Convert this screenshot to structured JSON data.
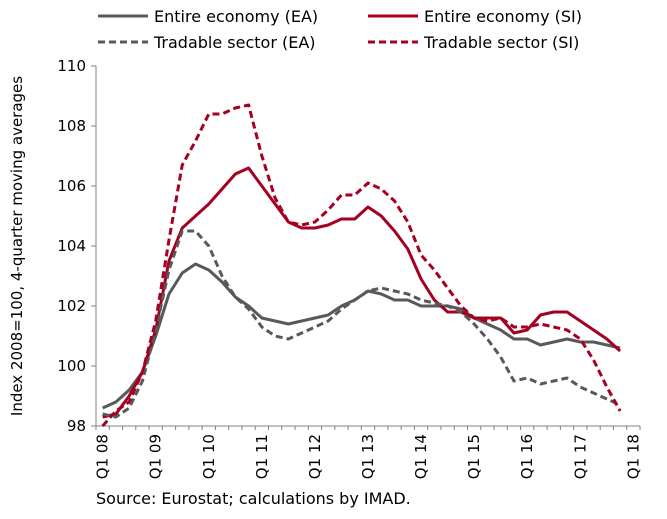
{
  "chart_data": {
    "type": "line",
    "title": "",
    "xlabel": "",
    "ylabel": "Index 2008=100, 4-quarter moving averages",
    "ylim": [
      98,
      110
    ],
    "yticks": [
      98,
      100,
      102,
      104,
      106,
      108,
      110
    ],
    "grid": false,
    "legend_position": "top",
    "x_tick_labels": [
      "Q1 08",
      "Q1 09",
      "Q1 10",
      "Q1 11",
      "Q1 12",
      "Q1 13",
      "Q1 14",
      "Q1 15",
      "Q1 16",
      "Q1 17",
      "Q1 18"
    ],
    "x": [
      "Q1 08",
      "Q2 08",
      "Q3 08",
      "Q4 08",
      "Q1 09",
      "Q2 09",
      "Q3 09",
      "Q4 09",
      "Q1 10",
      "Q2 10",
      "Q3 10",
      "Q4 10",
      "Q1 11",
      "Q2 11",
      "Q3 11",
      "Q4 11",
      "Q1 12",
      "Q2 12",
      "Q3 12",
      "Q4 12",
      "Q1 13",
      "Q2 13",
      "Q3 13",
      "Q4 13",
      "Q1 14",
      "Q2 14",
      "Q3 14",
      "Q4 14",
      "Q1 15",
      "Q2 15",
      "Q3 15",
      "Q4 15",
      "Q1 16",
      "Q2 16",
      "Q3 16",
      "Q4 16",
      "Q1 17",
      "Q2 17",
      "Q3 17",
      "Q4 17"
    ],
    "series": [
      {
        "name": "Entire economy (EA)",
        "color": "#595959",
        "dash": false,
        "values": [
          98.6,
          98.8,
          99.2,
          99.8,
          101.0,
          102.4,
          103.1,
          103.4,
          103.2,
          102.8,
          102.3,
          102.0,
          101.6,
          101.5,
          101.4,
          101.5,
          101.6,
          101.7,
          102.0,
          102.2,
          102.5,
          102.4,
          102.2,
          102.2,
          102.0,
          102.0,
          102.0,
          101.9,
          101.6,
          101.4,
          101.2,
          100.9,
          100.9,
          100.7,
          100.8,
          100.9,
          100.8,
          100.8,
          100.7,
          100.6
        ]
      },
      {
        "name": "Entire economy (SI)",
        "color": "#a50021",
        "dash": false,
        "values": [
          98.3,
          98.4,
          99.0,
          99.8,
          101.2,
          103.5,
          104.6,
          105.0,
          105.4,
          105.9,
          106.4,
          106.6,
          106.0,
          105.4,
          104.8,
          104.6,
          104.6,
          104.7,
          104.9,
          104.9,
          105.3,
          105.0,
          104.5,
          103.9,
          102.9,
          102.2,
          101.8,
          101.8,
          101.6,
          101.6,
          101.6,
          101.1,
          101.2,
          101.7,
          101.8,
          101.8,
          101.5,
          101.2,
          100.9,
          100.5
        ]
      },
      {
        "name": "Tradable sector (EA)",
        "color": "#595959",
        "dash": true,
        "values": [
          98.4,
          98.3,
          98.6,
          99.5,
          101.2,
          103.2,
          104.5,
          104.5,
          104.0,
          103.0,
          102.3,
          101.9,
          101.3,
          101.0,
          100.9,
          101.1,
          101.3,
          101.5,
          101.9,
          102.2,
          102.5,
          102.6,
          102.5,
          102.4,
          102.2,
          102.1,
          102.0,
          101.8,
          101.4,
          100.9,
          100.3,
          99.5,
          99.6,
          99.4,
          99.5,
          99.6,
          99.3,
          99.1,
          98.9,
          98.7
        ]
      },
      {
        "name": "Tradable sector (SI)",
        "color": "#a50021",
        "dash": true,
        "values": [
          98.0,
          98.5,
          98.8,
          99.8,
          101.5,
          104.2,
          106.7,
          107.5,
          108.4,
          108.4,
          108.6,
          108.7,
          107.0,
          105.6,
          104.8,
          104.7,
          104.8,
          105.2,
          105.7,
          105.7,
          106.1,
          105.9,
          105.5,
          104.8,
          103.7,
          103.2,
          102.6,
          102.0,
          101.6,
          101.5,
          101.6,
          101.3,
          101.3,
          101.4,
          101.3,
          101.2,
          100.9,
          100.2,
          99.3,
          98.5
        ]
      }
    ]
  },
  "footer": {
    "source": "Source: Eurostat; calculations by IMAD."
  }
}
